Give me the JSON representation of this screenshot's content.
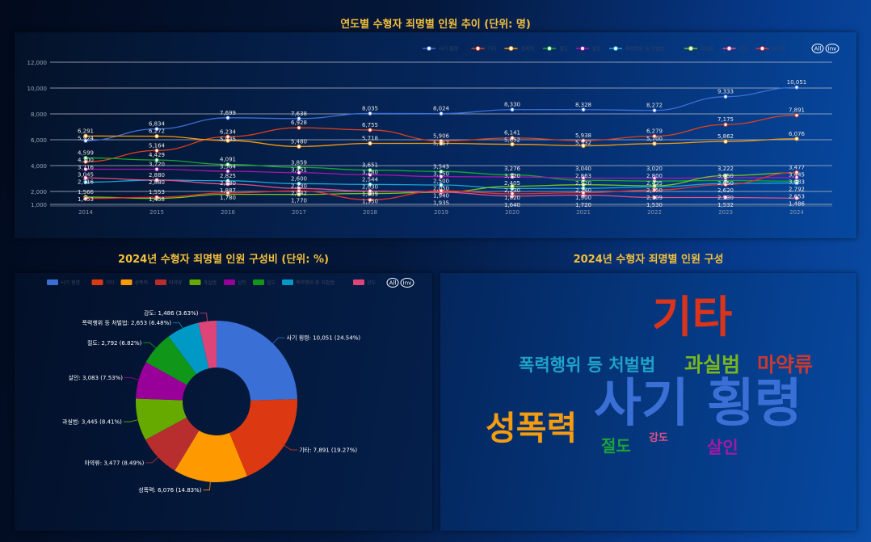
{
  "titles": {
    "line": "연도별 수형자 죄명별 인원 추이 (단위: 명)",
    "pie": "2024년 수형자 죄명별 인원 구성비 (단위: %)",
    "cloud": "2024년 수형자 죄명별 인원 구성"
  },
  "legend_buttons": {
    "all": "All",
    "inv": "Inv"
  },
  "chart_data": [
    {
      "type": "line",
      "title": "연도별 수형자 죄명별 인원 추이 (단위: 명)",
      "x": [
        "2014",
        "2015",
        "2016",
        "2017",
        "2018",
        "2019",
        "2020",
        "2021",
        "2022",
        "2023",
        "2024"
      ],
      "yticks": [
        1000,
        2000,
        4000,
        6000,
        8000,
        10000,
        12000
      ],
      "ytick_labels": [
        "1,000",
        "2,000",
        "4,000",
        "6,000",
        "8,000",
        "10,000",
        "12,000"
      ],
      "ylim": [
        1000,
        12000
      ],
      "grid": true,
      "legend_position": "top-right",
      "series": [
        {
          "name": "사기 횡령",
          "color": "#3a6fd6",
          "values": [
            5924,
            6834,
            7699,
            7638,
            8035,
            8024,
            8330,
            8328,
            8272,
            9333,
            10051
          ]
        },
        {
          "name": "기타",
          "color": "#e0401c",
          "values": [
            4300,
            5164,
            6234,
            6928,
            6755,
            5906,
            6141,
            5938,
            6279,
            7175,
            7891
          ]
        },
        {
          "name": "성폭력",
          "color": "#f59a0c",
          "values": [
            6291,
            6272,
            5935,
            5480,
            5718,
            5717,
            5652,
            5532,
            5700,
            5862,
            6076
          ]
        },
        {
          "name": "절도",
          "color": "#16a82e",
          "values": [
            4599,
            4429,
            4091,
            3859,
            3651,
            3543,
            3276,
            2863,
            2800,
            2850,
            2792
          ]
        },
        {
          "name": "살인",
          "color": "#a616b0",
          "values": [
            3716,
            3720,
            3564,
            3451,
            3280,
            3150,
            3120,
            3040,
            3020,
            3050,
            3083
          ]
        },
        {
          "name": "폭력행위 등 처벌법",
          "color": "#1aa6d6",
          "values": [
            2716,
            2880,
            2825,
            2600,
            2544,
            2500,
            2230,
            2240,
            2350,
            2620,
            2653
          ]
        },
        {
          "name": "과실범",
          "color": "#7ac41c",
          "values": [
            1566,
            1458,
            1780,
            1770,
            1839,
            1935,
            2405,
            2520,
            2435,
            3222,
            3445
          ]
        },
        {
          "name": "강도",
          "color": "#e24f8c",
          "values": [
            3045,
            2880,
            2580,
            2230,
            2030,
            1940,
            1640,
            1720,
            1530,
            1532,
            1486
          ]
        },
        {
          "name": "마약류",
          "color": "#e8302e",
          "values": [
            1453,
            1553,
            1887,
            2042,
            1350,
            2050,
            1820,
            1900,
            2109,
            2530,
            3477
          ]
        }
      ]
    },
    {
      "type": "pie",
      "title": "2024년 수형자 죄명별 인원 구성비 (단위: %)",
      "legend_position": "top",
      "slices": [
        {
          "name": "사기 횡령",
          "value": 10051,
          "percent": 24.54,
          "color": "#3a6fd6",
          "label": "사기 횡령: 10,051 (24.54%)"
        },
        {
          "name": "기타",
          "value": 7891,
          "percent": 19.27,
          "color": "#dc3912",
          "label": "기타: 7,891 (19.27%)"
        },
        {
          "name": "성폭력",
          "value": 6076,
          "percent": 14.83,
          "color": "#ff9900",
          "label": "성폭력: 6,076 (14.83%)"
        },
        {
          "name": "마약류",
          "value": 3477,
          "percent": 8.49,
          "color": "#b82e2e",
          "label": "마약류: 3,477 (8.49%)"
        },
        {
          "name": "과실범",
          "value": 3445,
          "percent": 8.41,
          "color": "#66aa00",
          "label": "과실범: 3,445 (8.41%)"
        },
        {
          "name": "살인",
          "value": 3083,
          "percent": 7.53,
          "color": "#990099",
          "label": "살인: 3,083 (7.53%)"
        },
        {
          "name": "절도",
          "value": 2792,
          "percent": 6.82,
          "color": "#109618",
          "label": "절도: 2,792 (6.82%)"
        },
        {
          "name": "폭력행위 등 처벌법",
          "value": 2653,
          "percent": 6.48,
          "color": "#0099c6",
          "label": "폭력행위 등 처벌법: 2,653 (6.48%)"
        },
        {
          "name": "강도",
          "value": 1486,
          "percent": 3.63,
          "color": "#dd4477",
          "label": "강도: 1,486 (3.63%)"
        }
      ]
    }
  ],
  "wordcloud": [
    {
      "text": "기타",
      "color": "#d9341c"
    },
    {
      "text": "폭력행위 등 처벌법",
      "color": "#1fa3c9"
    },
    {
      "text": "과실범",
      "color": "#7ab51d"
    },
    {
      "text": "마약류",
      "color": "#c93a2e"
    },
    {
      "text": "사기 횡령",
      "color": "#3a6fd6"
    },
    {
      "text": "성폭력",
      "color": "#f39c12"
    },
    {
      "text": "절도",
      "color": "#1ca33a"
    },
    {
      "text": "강도",
      "color": "#e0508a"
    },
    {
      "text": "살인",
      "color": "#a01aa5"
    }
  ]
}
